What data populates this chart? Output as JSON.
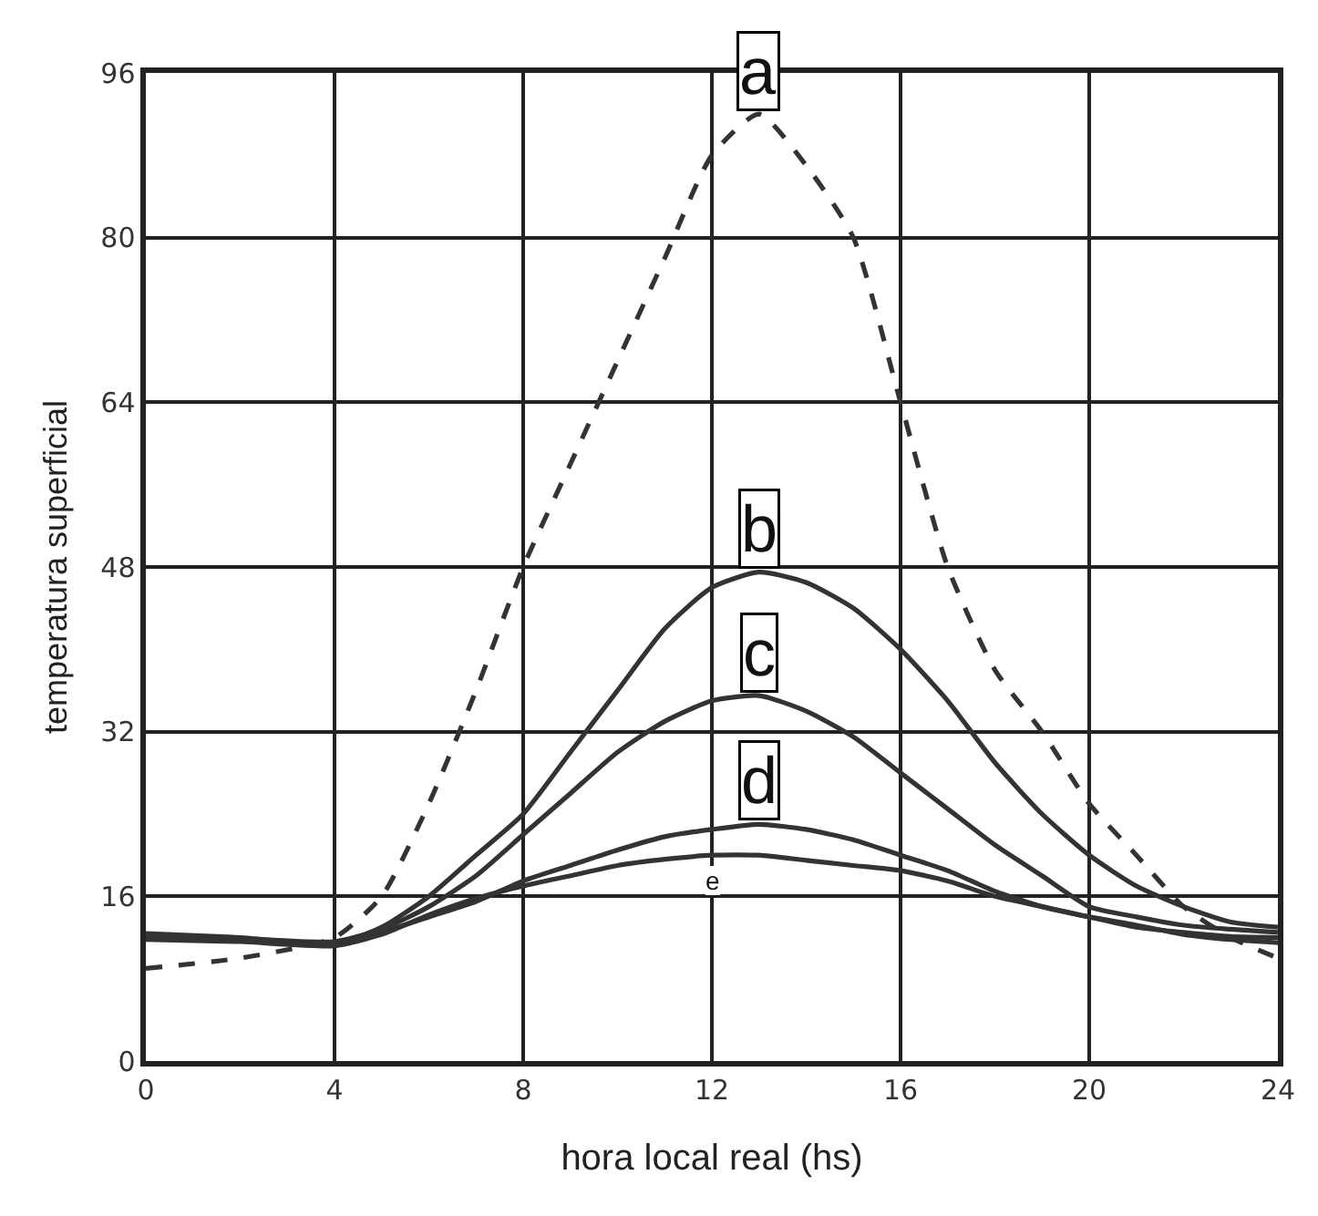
{
  "chart_data": {
    "type": "line",
    "xlabel": "hora local real (hs)",
    "ylabel": "temperatura superficial",
    "x": [
      0,
      2,
      4,
      5,
      6,
      7,
      8,
      9,
      10,
      11,
      12,
      13,
      14,
      15,
      16,
      17,
      18,
      19,
      20,
      21,
      22,
      23,
      24
    ],
    "series": [
      {
        "name": "a",
        "color": "#333333",
        "line_style": "dashed",
        "values": [
          9,
          10,
          12,
          16,
          25,
          36,
          48,
          58,
          68,
          78,
          88,
          92,
          87,
          80,
          64,
          48,
          38,
          32,
          25,
          20,
          15,
          12,
          10
        ]
      },
      {
        "name": "b",
        "color": "#333333",
        "values": [
          12.4,
          12,
          11.4,
          13,
          16,
          20,
          24,
          30,
          36,
          42,
          46,
          47.5,
          46.5,
          44,
          40,
          35,
          29,
          24,
          20,
          17,
          15,
          13.5,
          13
        ]
      },
      {
        "name": "c",
        "color": "#333333",
        "values": [
          12.2,
          11.9,
          11.6,
          12.8,
          15,
          18,
          22,
          26,
          30,
          33,
          35,
          35.5,
          34,
          31.5,
          28,
          24.5,
          21,
          18,
          15,
          14,
          13.2,
          12.8,
          12.5
        ]
      },
      {
        "name": "d",
        "color": "#333333",
        "values": [
          12,
          11.7,
          11.3,
          12.5,
          14,
          15.5,
          17.5,
          19,
          20.5,
          21.8,
          22.5,
          23,
          22.5,
          21.5,
          20,
          18.5,
          16.5,
          15,
          14,
          13,
          12.5,
          12.1,
          12
        ]
      },
      {
        "name": "e",
        "color": "#333333",
        "values": [
          11.8,
          11.6,
          11.2,
          12.3,
          14.2,
          15.8,
          17,
          18,
          19,
          19.6,
          20,
          20,
          19.5,
          19,
          18.5,
          17.5,
          16,
          15,
          14,
          13.2,
          12.3,
          11.8,
          11.5
        ]
      }
    ],
    "xlim": [
      0,
      24
    ],
    "xticks": [
      0,
      4,
      8,
      12,
      16,
      20,
      24
    ],
    "ylim": [
      0,
      96
    ],
    "yticks": [
      0,
      16,
      32,
      48,
      64,
      80,
      96
    ],
    "grid": true,
    "legend": false,
    "marker": "none",
    "line_style": "solid"
  }
}
